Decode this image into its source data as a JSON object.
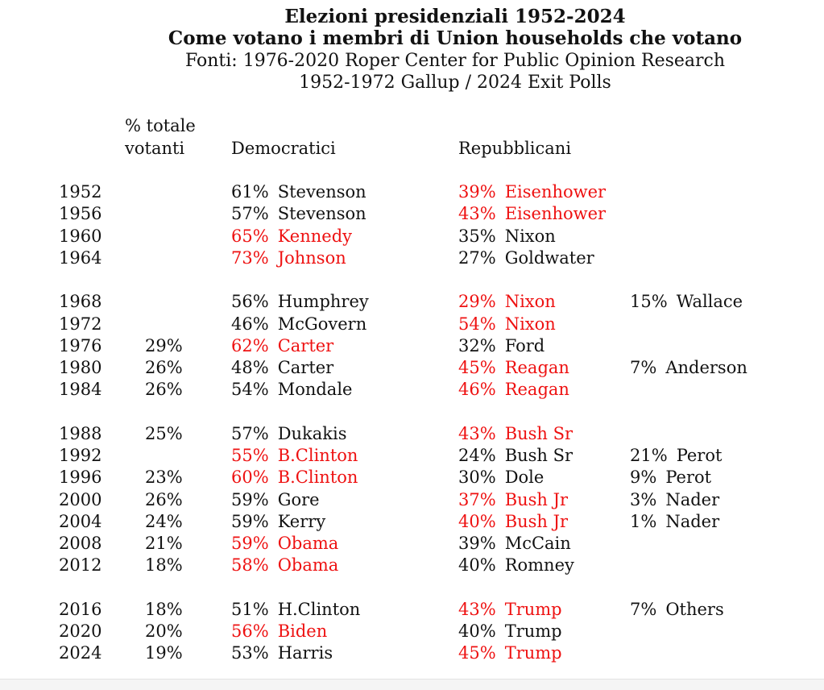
{
  "colors": {
    "text": "#121212",
    "winner_red": "#ee1111",
    "footer_bar": "#f5f5f5",
    "footer_bar_border": "#e2e2e2"
  },
  "header": {
    "title": "Elezioni presidenziali 1952-2024",
    "subtitle": "Come votano i membri di Union households che votano",
    "source_line_1": "Fonti: 1976-2020 Roper Center for Public Opinion Research",
    "source_line_2": "1952-1972 Gallup / 2024 Exit Polls"
  },
  "columns": {
    "turnout_label_line1": "% totale",
    "turnout_label_line2": "votanti",
    "democrats_label": "Democratici",
    "republicans_label": "Repubblicani"
  },
  "table": {
    "rows": [
      {
        "year": "1952",
        "turnout": "",
        "new_block": false,
        "dem": {
          "pct": "61%",
          "name": "Stevenson",
          "winner": false
        },
        "rep": {
          "pct": "39%",
          "name": "Eisenhower",
          "winner": true
        },
        "third": null
      },
      {
        "year": "1956",
        "turnout": "",
        "new_block": false,
        "dem": {
          "pct": "57%",
          "name": "Stevenson",
          "winner": false
        },
        "rep": {
          "pct": "43%",
          "name": "Eisenhower",
          "winner": true
        },
        "third": null
      },
      {
        "year": "1960",
        "turnout": "",
        "new_block": false,
        "dem": {
          "pct": "65%",
          "name": "Kennedy",
          "winner": true
        },
        "rep": {
          "pct": "35%",
          "name": "Nixon",
          "winner": false
        },
        "third": null
      },
      {
        "year": "1964",
        "turnout": "",
        "new_block": false,
        "dem": {
          "pct": "73%",
          "name": "Johnson",
          "winner": true
        },
        "rep": {
          "pct": "27%",
          "name": "Goldwater",
          "winner": false
        },
        "third": null
      },
      {
        "year": "1968",
        "turnout": "",
        "new_block": true,
        "dem": {
          "pct": "56%",
          "name": "Humphrey",
          "winner": false
        },
        "rep": {
          "pct": "29%",
          "name": "Nixon",
          "winner": true
        },
        "third": {
          "pct": "15%",
          "name": "Wallace",
          "winner": false
        }
      },
      {
        "year": "1972",
        "turnout": "",
        "new_block": false,
        "dem": {
          "pct": "46%",
          "name": "McGovern",
          "winner": false
        },
        "rep": {
          "pct": "54%",
          "name": "Nixon",
          "winner": true
        },
        "third": null
      },
      {
        "year": "1976",
        "turnout": "29%",
        "new_block": false,
        "dem": {
          "pct": "62%",
          "name": "Carter",
          "winner": true
        },
        "rep": {
          "pct": "32%",
          "name": "Ford",
          "winner": false
        },
        "third": null
      },
      {
        "year": "1980",
        "turnout": "26%",
        "new_block": false,
        "dem": {
          "pct": "48%",
          "name": "Carter",
          "winner": false
        },
        "rep": {
          "pct": "45%",
          "name": "Reagan",
          "winner": true
        },
        "third": {
          "pct": "7%",
          "name": "Anderson",
          "winner": false
        }
      },
      {
        "year": "1984",
        "turnout": "26%",
        "new_block": false,
        "dem": {
          "pct": "54%",
          "name": "Mondale",
          "winner": false
        },
        "rep": {
          "pct": "46%",
          "name": "Reagan",
          "winner": true
        },
        "third": null
      },
      {
        "year": "1988",
        "turnout": "25%",
        "new_block": true,
        "dem": {
          "pct": "57%",
          "name": "Dukakis",
          "winner": false
        },
        "rep": {
          "pct": "43%",
          "name": "Bush Sr",
          "winner": true
        },
        "third": null
      },
      {
        "year": "1992",
        "turnout": "",
        "new_block": false,
        "dem": {
          "pct": "55%",
          "name": "B.Clinton",
          "winner": true
        },
        "rep": {
          "pct": "24%",
          "name": "Bush Sr",
          "winner": false
        },
        "third": {
          "pct": "21%",
          "name": "Perot",
          "winner": false
        }
      },
      {
        "year": "1996",
        "turnout": "23%",
        "new_block": false,
        "dem": {
          "pct": "60%",
          "name": "B.Clinton",
          "winner": true
        },
        "rep": {
          "pct": "30%",
          "name": "Dole",
          "winner": false
        },
        "third": {
          "pct": "9%",
          "name": "Perot",
          "winner": false
        }
      },
      {
        "year": "2000",
        "turnout": "26%",
        "new_block": false,
        "dem": {
          "pct": "59%",
          "name": "Gore",
          "winner": false
        },
        "rep": {
          "pct": "37%",
          "name": "Bush Jr",
          "winner": true
        },
        "third": {
          "pct": "3%",
          "name": "Nader",
          "winner": false
        }
      },
      {
        "year": "2004",
        "turnout": "24%",
        "new_block": false,
        "dem": {
          "pct": "59%",
          "name": "Kerry",
          "winner": false
        },
        "rep": {
          "pct": "40%",
          "name": "Bush Jr",
          "winner": true
        },
        "third": {
          "pct": "1%",
          "name": "Nader",
          "winner": false
        }
      },
      {
        "year": "2008",
        "turnout": "21%",
        "new_block": false,
        "dem": {
          "pct": "59%",
          "name": "Obama",
          "winner": true
        },
        "rep": {
          "pct": "39%",
          "name": "McCain",
          "winner": false
        },
        "third": null
      },
      {
        "year": "2012",
        "turnout": "18%",
        "new_block": false,
        "dem": {
          "pct": "58%",
          "name": "Obama",
          "winner": true
        },
        "rep": {
          "pct": "40%",
          "name": "Romney",
          "winner": false
        },
        "third": null
      },
      {
        "year": "2016",
        "turnout": "18%",
        "new_block": true,
        "dem": {
          "pct": "51%",
          "name": "H.Clinton",
          "winner": false
        },
        "rep": {
          "pct": "43%",
          "name": "Trump",
          "winner": true
        },
        "third": {
          "pct": "7%",
          "name": "Others",
          "winner": false
        }
      },
      {
        "year": "2020",
        "turnout": "20%",
        "new_block": false,
        "dem": {
          "pct": "56%",
          "name": "Biden",
          "winner": true
        },
        "rep": {
          "pct": "40%",
          "name": "Trump",
          "winner": false
        },
        "third": null
      },
      {
        "year": "2024",
        "turnout": "19%",
        "new_block": false,
        "dem": {
          "pct": "53%",
          "name": "Harris",
          "winner": false
        },
        "rep": {
          "pct": "45%",
          "name": "Trump",
          "winner": true
        },
        "third": null
      }
    ]
  }
}
